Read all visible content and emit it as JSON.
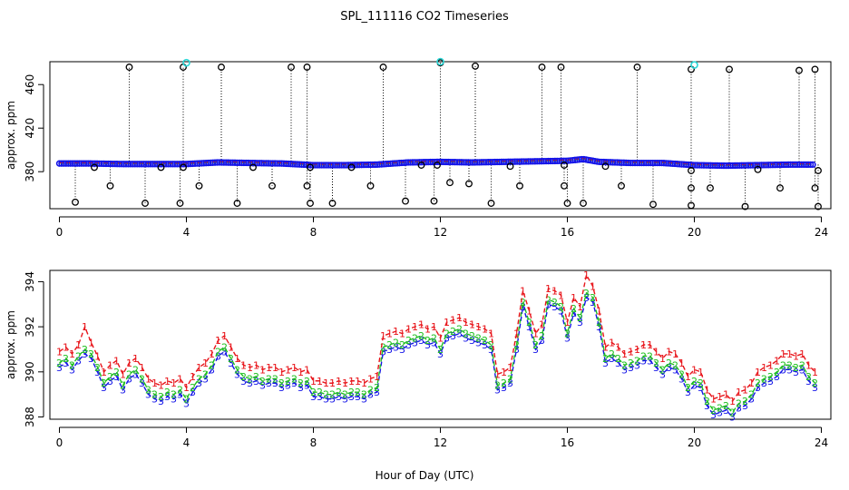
{
  "figure": {
    "title": "SPL_111116  CO2 Timeseries",
    "xlabel": "Hour of Day (UTC)"
  },
  "colors": {
    "black": "#000000",
    "red": "#e8151b",
    "green": "#1fbf1f",
    "blue": "#1515e8",
    "cyan": "#2ad6d6"
  },
  "chart_data": [
    {
      "type": "scatter",
      "title": "",
      "ylabel": "approx. ppm",
      "xlim": [
        -0.3,
        24.3
      ],
      "ylim": [
        346,
        481
      ],
      "xticks": [
        0,
        4,
        8,
        12,
        16,
        20,
        24
      ],
      "yticks": [
        380,
        420,
        460
      ],
      "baseline": [
        [
          0,
          387.5
        ],
        [
          1,
          387.5
        ],
        [
          2,
          387.0
        ],
        [
          3,
          387.0
        ],
        [
          4,
          387.0
        ],
        [
          5,
          388.5
        ],
        [
          6,
          388.0
        ],
        [
          7,
          387.5
        ],
        [
          8,
          386.0
        ],
        [
          9,
          386.0
        ],
        [
          10,
          386.5
        ],
        [
          11,
          388.5
        ],
        [
          12,
          389.0
        ],
        [
          13,
          388.5
        ],
        [
          14,
          389.0
        ],
        [
          15,
          389.5
        ],
        [
          16,
          390.0
        ],
        [
          16.5,
          391.5
        ],
        [
          17,
          389.0
        ],
        [
          18,
          388.0
        ],
        [
          19,
          388.0
        ],
        [
          20,
          386.0
        ],
        [
          21,
          385.5
        ],
        [
          22,
          386.0
        ],
        [
          23,
          386.5
        ],
        [
          23.8,
          386.5
        ]
      ],
      "spikes_high": [
        [
          2.2,
          476
        ],
        [
          3.9,
          476
        ],
        [
          5.1,
          476
        ],
        [
          7.3,
          476
        ],
        [
          7.8,
          476
        ],
        [
          10.2,
          476
        ],
        [
          12.0,
          480
        ],
        [
          13.1,
          477
        ],
        [
          15.2,
          476
        ],
        [
          15.8,
          476
        ],
        [
          18.2,
          476
        ],
        [
          19.9,
          474
        ],
        [
          21.1,
          474
        ],
        [
          23.3,
          473
        ],
        [
          23.8,
          474
        ]
      ],
      "spikes_low": [
        [
          0.5,
          352
        ],
        [
          1.6,
          367
        ],
        [
          2.7,
          351
        ],
        [
          3.8,
          351
        ],
        [
          4.4,
          367
        ],
        [
          5.6,
          351
        ],
        [
          6.7,
          367
        ],
        [
          7.8,
          367
        ],
        [
          7.9,
          351
        ],
        [
          8.6,
          351
        ],
        [
          9.8,
          367
        ],
        [
          10.9,
          353
        ],
        [
          11.8,
          353
        ],
        [
          12.3,
          370
        ],
        [
          12.9,
          369
        ],
        [
          13.6,
          351
        ],
        [
          14.5,
          367
        ],
        [
          15.9,
          367
        ],
        [
          16.0,
          351
        ],
        [
          16.5,
          351
        ],
        [
          17.7,
          367
        ],
        [
          18.7,
          350
        ],
        [
          19.9,
          365
        ],
        [
          19.9,
          349
        ],
        [
          20.5,
          365
        ],
        [
          21.6,
          348
        ],
        [
          22.7,
          365
        ],
        [
          23.8,
          365
        ],
        [
          23.9,
          348
        ]
      ],
      "spikes_mid": [
        [
          1.1,
          384
        ],
        [
          3.2,
          384
        ],
        [
          3.9,
          384
        ],
        [
          6.1,
          384
        ],
        [
          7.9,
          384
        ],
        [
          9.2,
          384
        ],
        [
          11.4,
          386
        ],
        [
          11.9,
          386
        ],
        [
          14.2,
          385
        ],
        [
          15.9,
          386
        ],
        [
          17.2,
          385
        ],
        [
          19.9,
          381
        ],
        [
          22.0,
          382
        ],
        [
          23.9,
          381
        ]
      ],
      "cyan_points": [
        [
          4.0,
          480
        ],
        [
          12.0,
          481
        ],
        [
          20.0,
          478
        ]
      ]
    },
    {
      "type": "line",
      "title": "",
      "ylabel": "approx. ppm",
      "xlim": [
        -0.3,
        24.3
      ],
      "ylim": [
        387.9,
        394.5
      ],
      "xticks": [
        0,
        4,
        8,
        12,
        16,
        20,
        24
      ],
      "yticks": [
        388,
        390,
        392,
        394
      ],
      "series": [
        {
          "name": "3",
          "color": "blue",
          "x": [
            0.0,
            0.2,
            0.4,
            0.6,
            0.8,
            1.0,
            1.2,
            1.4,
            1.6,
            1.8,
            2.0,
            2.2,
            2.4,
            2.6,
            2.8,
            3.0,
            3.2,
            3.4,
            3.6,
            3.8,
            4.0,
            4.2,
            4.4,
            4.6,
            4.8,
            5.0,
            5.2,
            5.4,
            5.6,
            5.8,
            6.0,
            6.2,
            6.4,
            6.6,
            6.8,
            7.0,
            7.2,
            7.4,
            7.6,
            7.8,
            8.0,
            8.2,
            8.4,
            8.6,
            8.8,
            9.0,
            9.2,
            9.4,
            9.6,
            9.8,
            10.0,
            10.2,
            10.4,
            10.6,
            10.8,
            11.0,
            11.2,
            11.4,
            11.6,
            11.8,
            12.0,
            12.2,
            12.4,
            12.6,
            12.8,
            13.0,
            13.2,
            13.4,
            13.6,
            13.8,
            14.0,
            14.2,
            14.4,
            14.6,
            14.8,
            15.0,
            15.2,
            15.4,
            15.6,
            15.8,
            16.0,
            16.2,
            16.4,
            16.6,
            16.8,
            17.0,
            17.2,
            17.4,
            17.6,
            17.8,
            18.0,
            18.2,
            18.4,
            18.6,
            18.8,
            19.0,
            19.2,
            19.4,
            19.6,
            19.8,
            20.0,
            20.2,
            20.4,
            20.6,
            20.8,
            21.0,
            21.2,
            21.4,
            21.6,
            21.8,
            22.0,
            22.2,
            22.4,
            22.6,
            22.8,
            23.0,
            23.2,
            23.4,
            23.6,
            23.8
          ],
          "values": [
            390.2,
            390.4,
            390.1,
            390.5,
            390.8,
            390.6,
            390.0,
            389.3,
            389.6,
            389.8,
            389.2,
            389.7,
            389.9,
            389.5,
            389.0,
            388.8,
            388.7,
            388.9,
            388.8,
            389.0,
            388.6,
            389.1,
            389.5,
            389.7,
            390.1,
            390.7,
            390.9,
            390.4,
            389.9,
            389.6,
            389.5,
            389.6,
            389.4,
            389.5,
            389.5,
            389.3,
            389.4,
            389.5,
            389.3,
            389.4,
            388.9,
            388.9,
            388.8,
            388.8,
            388.9,
            388.8,
            388.9,
            388.9,
            388.8,
            389.0,
            389.1,
            390.9,
            391.0,
            391.1,
            391.0,
            391.2,
            391.3,
            391.4,
            391.2,
            391.3,
            390.8,
            391.5,
            391.6,
            391.7,
            391.5,
            391.4,
            391.3,
            391.2,
            391.0,
            389.2,
            389.3,
            389.5,
            391.0,
            392.9,
            392.0,
            391.0,
            391.4,
            393.0,
            392.9,
            392.7,
            391.5,
            392.6,
            392.2,
            393.3,
            393.1,
            392.0,
            390.4,
            390.6,
            390.4,
            390.1,
            390.2,
            390.3,
            390.5,
            390.5,
            390.2,
            389.9,
            390.2,
            390.1,
            389.7,
            389.1,
            389.4,
            389.3,
            388.5,
            388.1,
            388.2,
            388.3,
            388.0,
            388.4,
            388.5,
            388.8,
            389.3,
            389.5,
            389.6,
            389.8,
            390.1,
            390.1,
            390.0,
            390.1,
            389.6,
            389.3
          ]
        },
        {
          "name": "2",
          "color": "green",
          "x": [
            0.0,
            0.2,
            0.4,
            0.6,
            0.8,
            1.0,
            1.2,
            1.4,
            1.6,
            1.8,
            2.0,
            2.2,
            2.4,
            2.6,
            2.8,
            3.0,
            3.2,
            3.4,
            3.6,
            3.8,
            4.0,
            4.2,
            4.4,
            4.6,
            4.8,
            5.0,
            5.2,
            5.4,
            5.6,
            5.8,
            6.0,
            6.2,
            6.4,
            6.6,
            6.8,
            7.0,
            7.2,
            7.4,
            7.6,
            7.8,
            8.0,
            8.2,
            8.4,
            8.6,
            8.8,
            9.0,
            9.2,
            9.4,
            9.6,
            9.8,
            10.0,
            10.2,
            10.4,
            10.6,
            10.8,
            11.0,
            11.2,
            11.4,
            11.6,
            11.8,
            12.0,
            12.2,
            12.4,
            12.6,
            12.8,
            13.0,
            13.2,
            13.4,
            13.6,
            13.8,
            14.0,
            14.2,
            14.4,
            14.6,
            14.8,
            15.0,
            15.2,
            15.4,
            15.6,
            15.8,
            16.0,
            16.2,
            16.4,
            16.6,
            16.8,
            17.0,
            17.2,
            17.4,
            17.6,
            17.8,
            18.0,
            18.2,
            18.4,
            18.6,
            18.8,
            19.0,
            19.2,
            19.4,
            19.6,
            19.8,
            20.0,
            20.2,
            20.4,
            20.6,
            20.8,
            21.0,
            21.2,
            21.4,
            21.6,
            21.8,
            22.0,
            22.2,
            22.4,
            22.6,
            22.8,
            23.0,
            23.2,
            23.4,
            23.6,
            23.8
          ],
          "values": [
            390.4,
            390.6,
            390.3,
            390.7,
            391.0,
            390.8,
            390.2,
            389.5,
            389.8,
            390.0,
            389.4,
            389.9,
            390.1,
            389.7,
            389.2,
            389.0,
            388.9,
            389.1,
            389.0,
            389.2,
            388.8,
            389.3,
            389.7,
            389.9,
            390.3,
            390.9,
            391.1,
            390.6,
            390.1,
            389.8,
            389.7,
            389.8,
            389.6,
            389.7,
            389.7,
            389.5,
            389.6,
            389.7,
            389.5,
            389.6,
            389.1,
            389.1,
            389.0,
            389.0,
            389.1,
            389.0,
            389.1,
            389.1,
            389.0,
            389.2,
            389.3,
            391.1,
            391.2,
            391.3,
            391.2,
            391.4,
            391.5,
            391.6,
            391.4,
            391.5,
            391.0,
            391.7,
            391.8,
            391.9,
            391.7,
            391.6,
            391.5,
            391.4,
            391.2,
            389.4,
            389.5,
            389.7,
            391.2,
            393.1,
            392.2,
            391.2,
            391.6,
            393.2,
            393.1,
            392.9,
            391.7,
            392.8,
            392.4,
            393.5,
            393.3,
            392.2,
            390.6,
            390.8,
            390.6,
            390.3,
            390.4,
            390.5,
            390.7,
            390.7,
            390.4,
            390.1,
            390.4,
            390.3,
            389.9,
            389.3,
            389.6,
            389.5,
            388.7,
            388.3,
            388.4,
            388.5,
            388.2,
            388.6,
            388.7,
            389.0,
            389.5,
            389.7,
            389.8,
            390.0,
            390.3,
            390.3,
            390.2,
            390.3,
            389.8,
            389.5
          ]
        },
        {
          "name": "1",
          "color": "red",
          "x": [
            0.0,
            0.2,
            0.4,
            0.6,
            0.8,
            1.0,
            1.2,
            1.4,
            1.6,
            1.8,
            2.0,
            2.2,
            2.4,
            2.6,
            2.8,
            3.0,
            3.2,
            3.4,
            3.6,
            3.8,
            4.0,
            4.2,
            4.4,
            4.6,
            4.8,
            5.0,
            5.2,
            5.4,
            5.6,
            5.8,
            6.0,
            6.2,
            6.4,
            6.6,
            6.8,
            7.0,
            7.2,
            7.4,
            7.6,
            7.8,
            8.0,
            8.2,
            8.4,
            8.6,
            8.8,
            9.0,
            9.2,
            9.4,
            9.6,
            9.8,
            10.0,
            10.2,
            10.4,
            10.6,
            10.8,
            11.0,
            11.2,
            11.4,
            11.6,
            11.8,
            12.0,
            12.2,
            12.4,
            12.6,
            12.8,
            13.0,
            13.2,
            13.4,
            13.6,
            13.8,
            14.0,
            14.2,
            14.4,
            14.6,
            14.8,
            15.0,
            15.2,
            15.4,
            15.6,
            15.8,
            16.0,
            16.2,
            16.4,
            16.6,
            16.8,
            17.0,
            17.2,
            17.4,
            17.6,
            17.8,
            18.0,
            18.2,
            18.4,
            18.6,
            18.8,
            19.0,
            19.2,
            19.4,
            19.6,
            19.8,
            20.0,
            20.2,
            20.4,
            20.6,
            20.8,
            21.0,
            21.2,
            21.4,
            21.6,
            21.8,
            22.0,
            22.2,
            22.4,
            22.6,
            22.8,
            23.0,
            23.2,
            23.4,
            23.6,
            23.8
          ],
          "values": [
            390.9,
            391.1,
            390.8,
            391.2,
            392.0,
            391.3,
            390.7,
            390.0,
            390.3,
            390.5,
            389.9,
            390.4,
            390.6,
            390.2,
            389.7,
            389.5,
            389.4,
            389.6,
            389.5,
            389.7,
            389.3,
            389.8,
            390.2,
            390.4,
            390.8,
            391.4,
            391.6,
            391.1,
            390.6,
            390.3,
            390.2,
            390.3,
            390.1,
            390.2,
            390.2,
            390.0,
            390.1,
            390.2,
            390.0,
            390.1,
            389.6,
            389.6,
            389.5,
            389.5,
            389.6,
            389.5,
            389.6,
            389.6,
            389.5,
            389.7,
            389.8,
            391.6,
            391.7,
            391.8,
            391.7,
            391.9,
            392.0,
            392.1,
            391.9,
            392.0,
            391.5,
            392.2,
            392.3,
            392.4,
            392.2,
            392.1,
            392.0,
            391.9,
            391.7,
            389.9,
            390.0,
            390.2,
            391.7,
            393.6,
            392.7,
            391.7,
            392.1,
            393.7,
            393.6,
            393.4,
            392.2,
            393.3,
            392.9,
            394.3,
            393.8,
            392.7,
            391.1,
            391.3,
            391.1,
            390.8,
            390.9,
            391.0,
            391.2,
            391.2,
            390.9,
            390.6,
            390.9,
            390.8,
            390.4,
            389.8,
            390.1,
            390.0,
            389.2,
            388.8,
            388.9,
            389.0,
            388.7,
            389.1,
            389.2,
            389.5,
            390.0,
            390.2,
            390.3,
            390.5,
            390.8,
            390.8,
            390.7,
            390.8,
            390.3,
            390.0
          ]
        }
      ]
    }
  ]
}
